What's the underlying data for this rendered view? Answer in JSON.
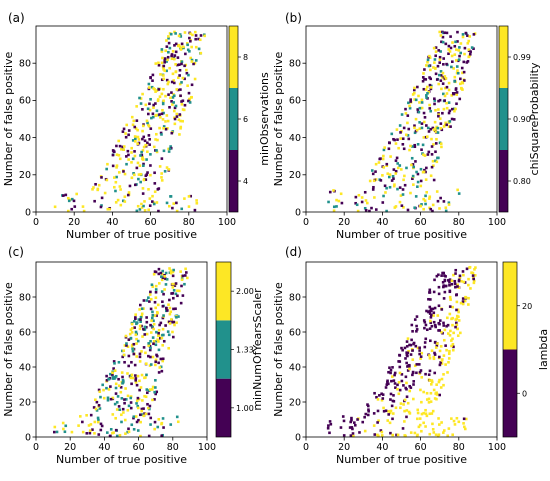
{
  "colors": {
    "yellow": "#fde725",
    "teal": "#21918c",
    "purple": "#440154"
  },
  "chart_data": [
    {
      "type": "scatter",
      "panel": "(a)",
      "xlabel": "Number of true positive",
      "ylabel": "Number of false positive",
      "xlim": [
        0,
        100
      ],
      "ylim": [
        0,
        100
      ],
      "xticks": [
        "0",
        "20",
        "40",
        "60",
        "80",
        "100"
      ],
      "yticks": [
        "0",
        "20",
        "40",
        "60",
        "80"
      ],
      "colorbar": {
        "label": "minObservations",
        "ticks": [
          "4",
          "6",
          "8"
        ],
        "levels": [
          "purple",
          "teal",
          "yellow"
        ]
      },
      "distribution": "scatter_crescent",
      "seed": 11,
      "level_weights": [
        0.33,
        0.17,
        0.5
      ],
      "n_points": 460
    },
    {
      "type": "scatter",
      "panel": "(b)",
      "xlabel": "Number of true positive",
      "ylabel": "Number of false positive",
      "xlim": [
        0,
        100
      ],
      "ylim": [
        0,
        100
      ],
      "xticks": [
        "0",
        "20",
        "40",
        "60",
        "80",
        "100"
      ],
      "yticks": [
        "0",
        "20",
        "40",
        "60",
        "80"
      ],
      "colorbar": {
        "label": "chiSquareProbability",
        "ticks": [
          "0.80",
          "0.90",
          "0.99"
        ],
        "levels": [
          "purple",
          "teal",
          "yellow"
        ]
      },
      "distribution": "scatter_crescent",
      "seed": 23,
      "level_weights": [
        0.35,
        0.22,
        0.43
      ],
      "n_points": 460
    },
    {
      "type": "scatter",
      "panel": "(c)",
      "xlabel": "Number of true positive",
      "ylabel": "Number of false positive",
      "xlim": [
        0,
        100
      ],
      "ylim": [
        0,
        100
      ],
      "xticks": [
        "0",
        "20",
        "40",
        "60",
        "80",
        "100"
      ],
      "yticks": [
        "0",
        "20",
        "40",
        "60",
        "80"
      ],
      "colorbar": {
        "label": "minNumOfYearsScaler",
        "ticks": [
          "1.00",
          "1.33",
          "2.00"
        ],
        "levels": [
          "purple",
          "teal",
          "yellow"
        ]
      },
      "distribution": "scatter_crescent",
      "seed": 37,
      "level_weights": [
        0.34,
        0.28,
        0.38
      ],
      "n_points": 460
    },
    {
      "type": "scatter",
      "panel": "(d)",
      "xlabel": "Number of true positive",
      "ylabel": "Number of false positive",
      "xlim": [
        0,
        100
      ],
      "ylim": [
        0,
        100
      ],
      "xticks": [
        "0",
        "20",
        "40",
        "60",
        "80",
        "100"
      ],
      "yticks": [
        "0",
        "20",
        "40",
        "60",
        "80"
      ],
      "colorbar": {
        "label": "lambda",
        "ticks": [
          "0",
          "20"
        ],
        "levels": [
          "purple",
          "yellow"
        ]
      },
      "distribution": "scatter_crescent_split",
      "seed": 51,
      "level_weights": [
        0.45,
        0.55
      ],
      "n_points": 460
    }
  ]
}
